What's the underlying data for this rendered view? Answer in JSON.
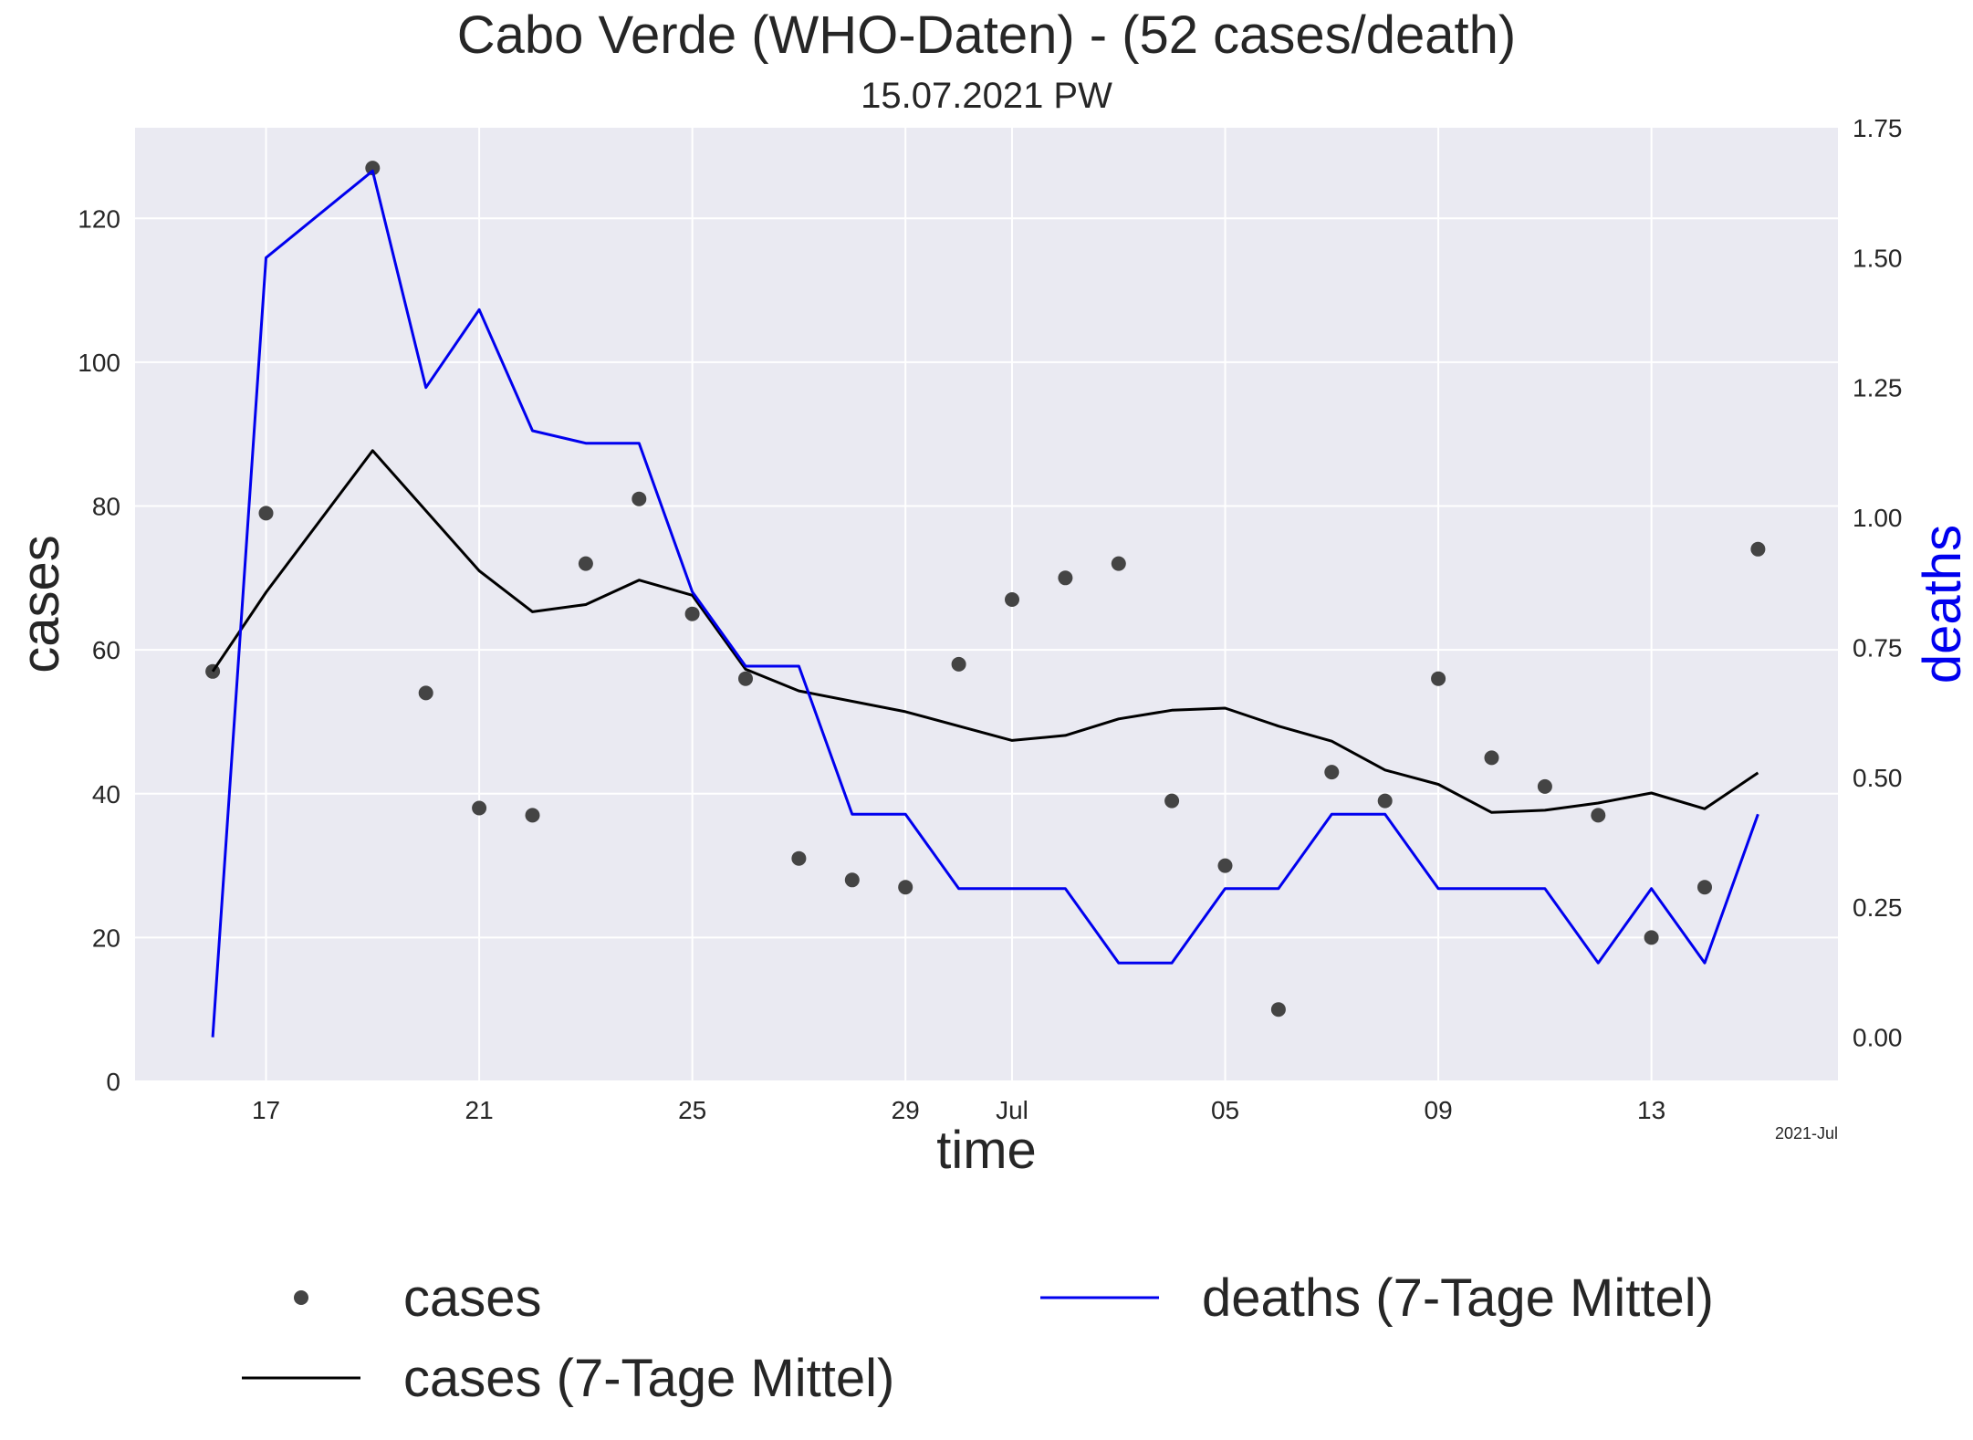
{
  "chart_data": {
    "type": "line",
    "title": "Cabo Verde (WHO-Daten) - (52 cases/death)",
    "subtitle": "15.07.2021 PW",
    "xlabel": "time",
    "ylabel": "cases",
    "y2label": "deaths",
    "x_corner_label": "2021-Jul",
    "x": [
      "2021-06-16",
      "2021-06-17",
      "2021-06-18",
      "2021-06-19",
      "2021-06-20",
      "2021-06-21",
      "2021-06-22",
      "2021-06-23",
      "2021-06-24",
      "2021-06-25",
      "2021-06-26",
      "2021-06-27",
      "2021-06-28",
      "2021-06-29",
      "2021-06-30",
      "2021-07-01",
      "2021-07-02",
      "2021-07-03",
      "2021-07-04",
      "2021-07-05",
      "2021-07-06",
      "2021-07-07",
      "2021-07-08",
      "2021-07-09",
      "2021-07-10",
      "2021-07-11",
      "2021-07-12",
      "2021-07-13",
      "2021-07-14",
      "2021-07-15"
    ],
    "xlim": [
      "2021-06-14T13:00",
      "2021-07-16T12:00"
    ],
    "ylim": [
      0,
      132.6
    ],
    "y2lim": [
      -0.085,
      1.75
    ],
    "xticks": [
      {
        "date": "2021-06-17",
        "label": "17"
      },
      {
        "date": "2021-06-21",
        "label": "21"
      },
      {
        "date": "2021-06-25",
        "label": "25"
      },
      {
        "date": "2021-06-29",
        "label": "29"
      },
      {
        "date": "2021-07-01",
        "label": "Jul"
      },
      {
        "date": "2021-07-05",
        "label": "05"
      },
      {
        "date": "2021-07-09",
        "label": "09"
      },
      {
        "date": "2021-07-13",
        "label": "13"
      }
    ],
    "yticks": [
      0,
      20,
      40,
      60,
      80,
      100,
      120
    ],
    "y2ticks": [
      "0.00",
      "0.25",
      "0.50",
      "0.75",
      "1.00",
      "1.25",
      "1.50",
      "1.75"
    ],
    "grid": true,
    "legend_position": "bottom",
    "series": [
      {
        "name": "cases",
        "type": "scatter",
        "axis": "left",
        "color": "#444444",
        "values": [
          57,
          79,
          null,
          127,
          54,
          38,
          37,
          72,
          81,
          65,
          56,
          31,
          28,
          27,
          58,
          67,
          70,
          72,
          39,
          30,
          10,
          43,
          39,
          56,
          45,
          41,
          37,
          20,
          27,
          74
        ]
      },
      {
        "name": "cases (7-Tage Mittel)",
        "type": "line",
        "axis": "left",
        "color": "#000000",
        "values": [
          57,
          68,
          null,
          87.7,
          null,
          71,
          65.3,
          66.3,
          69.7,
          67.6,
          57.3,
          54.3,
          null,
          51.4,
          null,
          47.4,
          48.1,
          50.4,
          51.6,
          51.9,
          49.4,
          47.3,
          43.3,
          41.3,
          37.4,
          37.7,
          38.7,
          40.1,
          37.9,
          42.9
        ]
      },
      {
        "name": "deaths (7-Tage Mittel)",
        "type": "line",
        "axis": "right",
        "color": "#0000ee",
        "values": [
          0,
          1.5,
          null,
          1.667,
          1.25,
          1.4,
          1.167,
          1.143,
          1.143,
          0.857,
          0.714,
          0.714,
          0.429,
          0.429,
          0.286,
          0.286,
          0.286,
          0.143,
          0.143,
          0.286,
          0.286,
          0.429,
          0.429,
          0.286,
          0.286,
          0.286,
          0.143,
          0.286,
          0.143,
          0.429
        ]
      }
    ]
  }
}
